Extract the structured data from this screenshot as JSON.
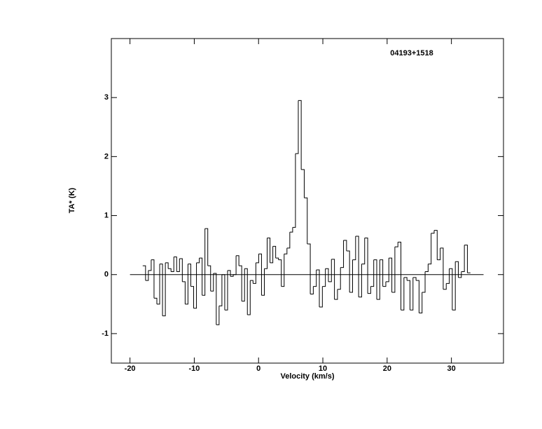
{
  "chart_data": {
    "type": "step",
    "title": "04193+1518",
    "x_label": "Velocity (km/s)",
    "y_label": "TA* (K)",
    "xlim": [
      -22.9,
      38.1
    ],
    "ylim": [
      -1.5,
      4.0
    ],
    "xticks": [
      -20,
      -10,
      0,
      10,
      20,
      30
    ],
    "yticks": [
      -1,
      0,
      1,
      2,
      3
    ],
    "baseline": [
      -20,
      35
    ],
    "color": "#000000",
    "x": [
      -17.8,
      -17.36,
      -16.92,
      -16.48,
      -16.04,
      -15.6,
      -15.16,
      -14.72,
      -14.28,
      -13.84,
      -13.4,
      -12.96,
      -12.52,
      -12.08,
      -11.64,
      -11.2,
      -10.76,
      -10.32,
      -9.88,
      -9.44,
      -9.0,
      -8.56,
      -8.12,
      -7.68,
      -7.24,
      -6.8,
      -6.36,
      -5.92,
      -5.48,
      -5.04,
      -4.6,
      -4.16,
      -3.72,
      -3.28,
      -2.84,
      -2.4,
      -1.96,
      -1.52,
      -1.08,
      -0.64,
      -0.2,
      0.24,
      0.68,
      1.12,
      1.56,
      2.0,
      2.44,
      2.88,
      3.32,
      3.76,
      4.2,
      4.64,
      5.08,
      5.52,
      5.96,
      6.4,
      6.87,
      7.34,
      7.81,
      8.28,
      8.75,
      9.22,
      9.69,
      10.16,
      10.63,
      11.1,
      11.57,
      12.04,
      12.51,
      12.98,
      13.45,
      13.92,
      14.39,
      14.86,
      15.33,
      15.8,
      16.27,
      16.74,
      17.21,
      17.68,
      18.15,
      18.62,
      19.09,
      19.56,
      20.03,
      20.5,
      20.97,
      21.44,
      21.91,
      22.38,
      22.85,
      23.32,
      23.79,
      24.26,
      24.73,
      25.2,
      25.67,
      26.14,
      26.61,
      27.08,
      27.55,
      28.02,
      28.49,
      28.96,
      29.43,
      29.9,
      30.37,
      30.84,
      31.31,
      31.78,
      32.25,
      32.72
    ],
    "values": [
      0.15,
      -0.1,
      0.07,
      0.25,
      -0.4,
      -0.5,
      0.18,
      -0.7,
      0.2,
      0.1,
      0.05,
      0.3,
      0.05,
      0.27,
      -0.12,
      -0.5,
      0.18,
      -0.2,
      -0.57,
      0.2,
      0.28,
      -0.35,
      0.78,
      0.15,
      -0.28,
      0.02,
      -0.85,
      -0.53,
      0.0,
      -0.6,
      0.07,
      -0.03,
      0.0,
      0.32,
      0.15,
      -0.45,
      0.1,
      -0.68,
      -0.1,
      -0.15,
      0.2,
      0.35,
      -0.35,
      0.1,
      0.62,
      0.2,
      0.48,
      0.28,
      0.25,
      -0.2,
      0.35,
      0.45,
      0.72,
      0.8,
      2.05,
      2.95,
      1.78,
      1.3,
      0.52,
      -0.33,
      -0.2,
      0.08,
      -0.55,
      -0.2,
      0.1,
      -0.12,
      0.26,
      -0.42,
      -0.25,
      0.12,
      0.58,
      0.4,
      -0.3,
      0.25,
      0.65,
      -0.38,
      0.18,
      0.62,
      -0.32,
      -0.2,
      0.25,
      -0.42,
      0.25,
      -0.2,
      -0.12,
      0.28,
      -0.3,
      0.47,
      0.55,
      -0.6,
      -0.05,
      -0.1,
      -0.6,
      -0.05,
      -0.1,
      -0.65,
      -0.3,
      0.05,
      0.18,
      0.7,
      0.75,
      0.25,
      0.45,
      -0.25,
      -0.15,
      0.1,
      -0.6,
      0.22,
      -0.05,
      0.05,
      0.5,
      0.03
    ]
  }
}
